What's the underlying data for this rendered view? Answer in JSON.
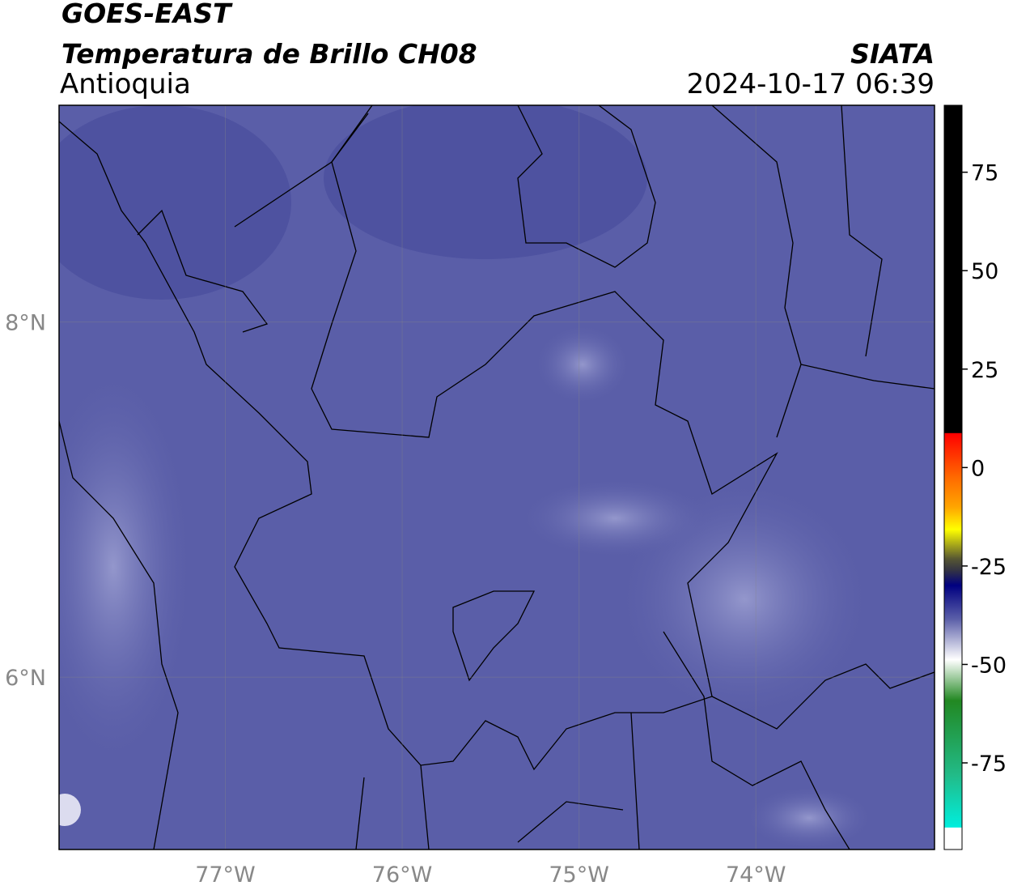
{
  "header": {
    "title": "GOES-EAST",
    "subtitle": "Temperatura de Brillo CH08",
    "region": "Antioquia",
    "source": "SIATA",
    "datetime": "2024-10-17 06:39"
  },
  "map": {
    "xlim": [
      -77.94,
      -72.99
    ],
    "ylim": [
      5.03,
      9.22
    ],
    "xticks": [
      {
        "value": -77,
        "label": "77°W"
      },
      {
        "value": -76,
        "label": "76°W"
      },
      {
        "value": -75,
        "label": "75°W"
      },
      {
        "value": -74,
        "label": "74°W"
      }
    ],
    "yticks": [
      {
        "value": 8,
        "label": "8°N"
      },
      {
        "value": 6,
        "label": "6°N"
      }
    ],
    "grid": true
  },
  "colorbar": {
    "lim": [
      -97,
      92
    ],
    "ticks": [
      75,
      50,
      25,
      0,
      -25,
      -50,
      -75
    ]
  }
}
